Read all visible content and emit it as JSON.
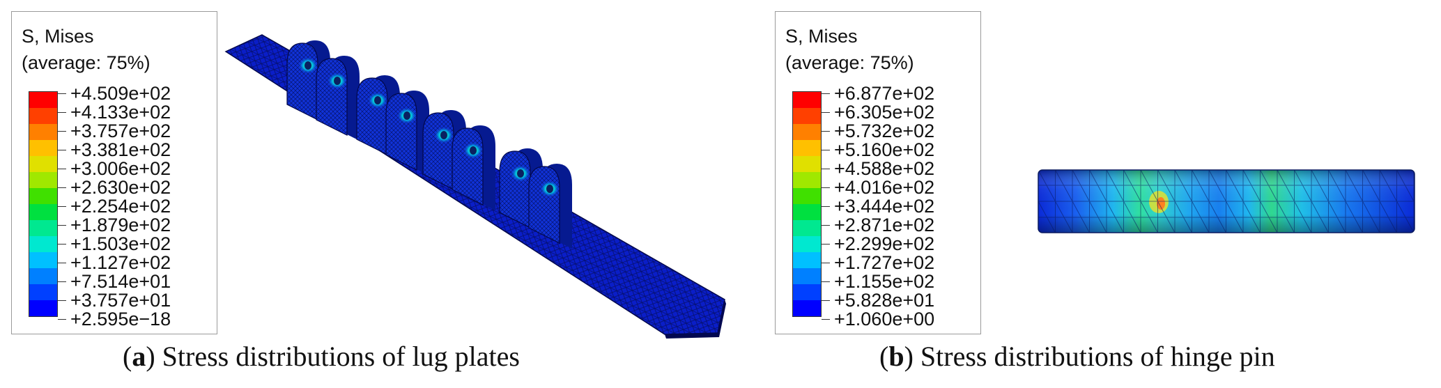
{
  "colors": {
    "scale": [
      "#0000ff",
      "#0040ff",
      "#0080ff",
      "#00c0ff",
      "#00e8d0",
      "#00e890",
      "#00e040",
      "#40e000",
      "#a0e800",
      "#e0e000",
      "#ffc000",
      "#ff8000",
      "#ff4000",
      "#ff0000"
    ]
  },
  "panel_a": {
    "legend": {
      "title": "S, Mises",
      "subtitle": "(average: 75%)",
      "values": [
        "+4.509e+02",
        "+4.133e+02",
        "+3.757e+02",
        "+3.381e+02",
        "+3.006e+02",
        "+2.630e+02",
        "+2.254e+02",
        "+1.879e+02",
        "+1.503e+02",
        "+1.127e+02",
        "+7.514e+01",
        "+3.757e+01",
        "+2.595e−18"
      ]
    },
    "caption_letter": "a",
    "caption_text": "Stress distributions of lug plates"
  },
  "panel_b": {
    "legend": {
      "title": "S, Mises",
      "subtitle": "(average: 75%)",
      "values": [
        "+6.877e+02",
        "+6.305e+02",
        "+5.732e+02",
        "+5.160e+02",
        "+4.588e+02",
        "+4.016e+02",
        "+3.444e+02",
        "+2.871e+02",
        "+2.299e+02",
        "+1.727e+02",
        "+1.155e+02",
        "+5.828e+01",
        "+1.060e+00"
      ]
    },
    "caption_letter": "b",
    "caption_text": "Stress distributions of hinge pin"
  }
}
